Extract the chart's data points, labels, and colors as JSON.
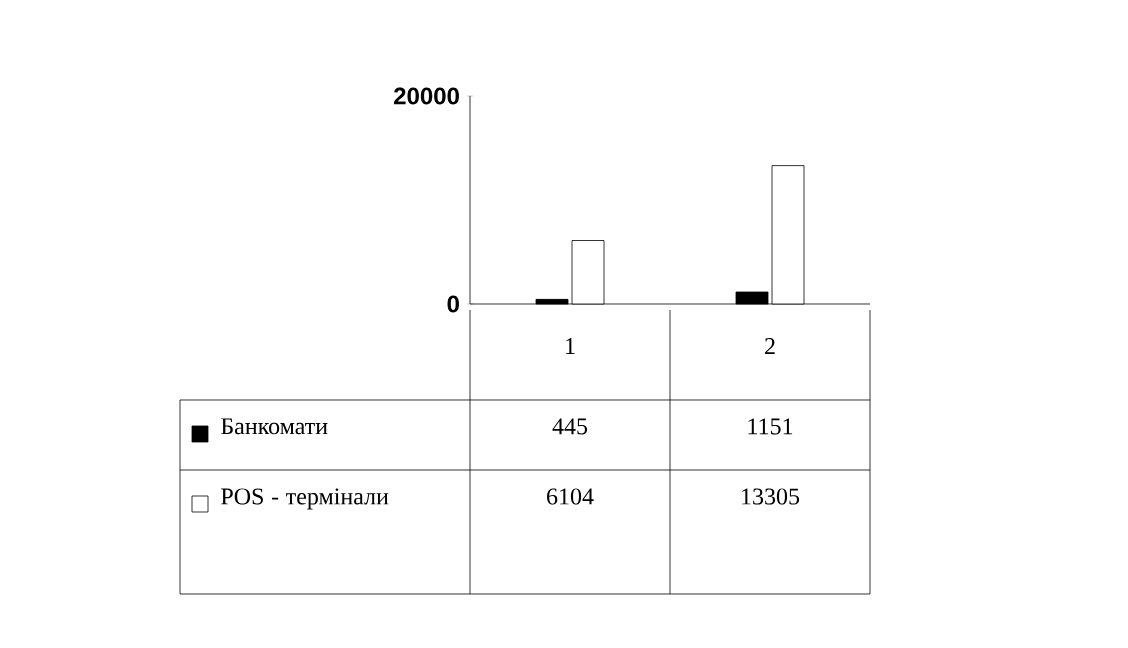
{
  "chart_data": {
    "type": "bar",
    "categories": [
      "1",
      "2"
    ],
    "series": [
      {
        "name": "Банкомати",
        "color": "#000000",
        "values": [
          445,
          1151
        ],
        "value_labels": [
          "445",
          "1151"
        ]
      },
      {
        "name": "POS - термінали",
        "color": "#ffffff",
        "values": [
          6104,
          13305
        ],
        "value_labels": [
          "6104",
          "13305"
        ]
      }
    ],
    "ylim": [
      0,
      20000
    ],
    "yticks": [
      0,
      20000
    ],
    "legend": "bottom",
    "grid": false
  }
}
